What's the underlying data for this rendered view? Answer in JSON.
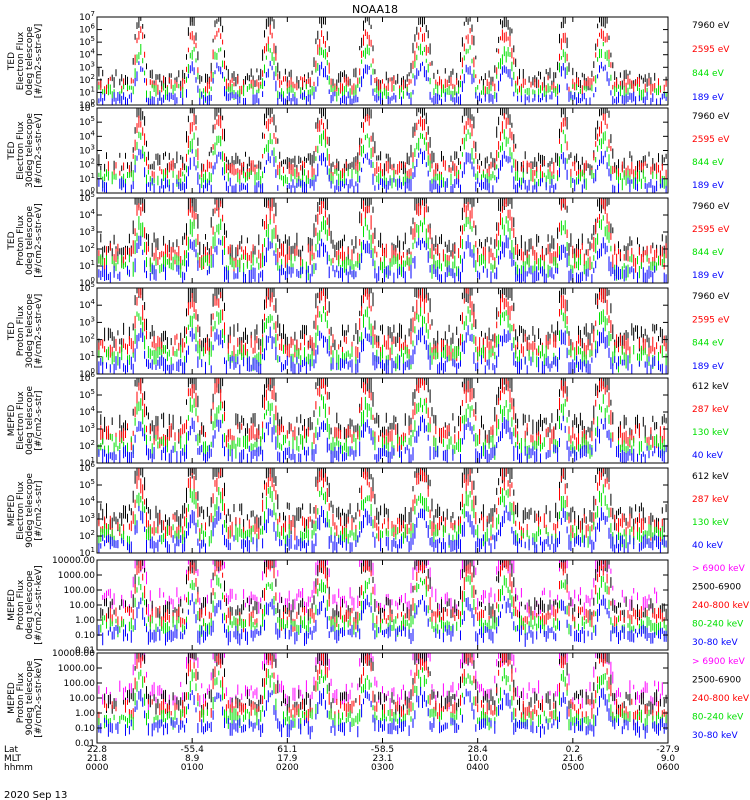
{
  "title": "NOAA18",
  "date": "2020 Sep 13",
  "colors": {
    "blue": "#0000ff",
    "red": "#ff0000",
    "green": "#00e000",
    "black": "#000000",
    "magenta": "#ff00ff"
  },
  "axis_rows": {
    "labels": [
      "Lat",
      "MLT",
      "hhmm"
    ]
  },
  "chart_data": [
    {
      "type": "line",
      "ylabel_lines": [
        "TED",
        "Electron Flux",
        "0deg telescope",
        "[#/cm2-s-str-eV]"
      ],
      "ylog": true,
      "ylim_exp": [
        0,
        7
      ],
      "ytick_labels": [
        "10^0",
        "10^1",
        "10^2",
        "10^3",
        "10^4",
        "10^5",
        "10^6",
        "10^7"
      ],
      "series": [
        {
          "name": "7960 eV",
          "color": "black"
        },
        {
          "name": "2595 eV",
          "color": "red"
        },
        {
          "name": "844 eV",
          "color": "green"
        },
        {
          "name": "189 eV",
          "color": "blue"
        }
      ]
    },
    {
      "type": "line",
      "ylabel_lines": [
        "TED",
        "Electron Flux",
        "30deg telescope",
        "[#/cm2-s-str-eV]"
      ],
      "ylog": true,
      "ylim_exp": [
        0,
        6
      ],
      "ytick_labels": [
        "10^0",
        "10^1",
        "10^2",
        "10^3",
        "10^4",
        "10^5",
        "10^6"
      ],
      "series": [
        {
          "name": "7960 eV",
          "color": "black"
        },
        {
          "name": "2595 eV",
          "color": "red"
        },
        {
          "name": "844 eV",
          "color": "green"
        },
        {
          "name": "189 eV",
          "color": "blue"
        }
      ]
    },
    {
      "type": "line",
      "ylabel_lines": [
        "TED",
        "Proton Flux",
        "0deg telescope",
        "[#/cm2-s-str-eV]"
      ],
      "ylog": true,
      "ylim_exp": [
        0,
        5
      ],
      "ytick_labels": [
        "10^0",
        "10^1",
        "10^2",
        "10^3",
        "10^4",
        "10^5"
      ],
      "series": [
        {
          "name": "7960 eV",
          "color": "black"
        },
        {
          "name": "2595 eV",
          "color": "red"
        },
        {
          "name": "844 eV",
          "color": "green"
        },
        {
          "name": "189 eV",
          "color": "blue"
        }
      ]
    },
    {
      "type": "line",
      "ylabel_lines": [
        "TED",
        "Proton Flux",
        "30deg telescope",
        "[#/cm2-s-str-eV]"
      ],
      "ylog": true,
      "ylim_exp": [
        0,
        5
      ],
      "ytick_labels": [
        "10^0",
        "10^1",
        "10^2",
        "10^3",
        "10^4",
        "10^5"
      ],
      "series": [
        {
          "name": "7960 eV",
          "color": "black"
        },
        {
          "name": "2595 eV",
          "color": "red"
        },
        {
          "name": "844 eV",
          "color": "green"
        },
        {
          "name": "189 eV",
          "color": "blue"
        }
      ]
    },
    {
      "type": "line",
      "ylabel_lines": [
        "MEPED",
        "Electron Flux",
        "0deg telescope",
        "[#/cm2-s-str]"
      ],
      "ylog": true,
      "ylim_exp": [
        1,
        6
      ],
      "ytick_labels": [
        "10^1",
        "10^2",
        "10^3",
        "10^4",
        "10^5",
        "10^6"
      ],
      "series": [
        {
          "name": "612 keV",
          "color": "black"
        },
        {
          "name": "287 keV",
          "color": "red"
        },
        {
          "name": "130 keV",
          "color": "green"
        },
        {
          "name": "40 keV",
          "color": "blue"
        }
      ]
    },
    {
      "type": "line",
      "ylabel_lines": [
        "MEPED",
        "Electron Flux",
        "90deg telescope",
        "[#/cm2-s-str]"
      ],
      "ylog": true,
      "ylim_exp": [
        1,
        6
      ],
      "ytick_labels": [
        "10^1",
        "10^2",
        "10^3",
        "10^4",
        "10^5",
        "10^6"
      ],
      "series": [
        {
          "name": "612 keV",
          "color": "black"
        },
        {
          "name": "287 keV",
          "color": "red"
        },
        {
          "name": "130 keV",
          "color": "green"
        },
        {
          "name": "40 keV",
          "color": "blue"
        }
      ]
    },
    {
      "type": "line",
      "ylabel_lines": [
        "MEPED",
        "Proton Flux",
        "0deg telescope",
        "[#/cm2-s-str-keV]"
      ],
      "ylog": true,
      "ylim_exp": [
        -2,
        4
      ],
      "ytick_labels": [
        "0.01",
        "0.10",
        "1.00",
        "10.00",
        "100.00",
        "1000.00",
        "10000.00"
      ],
      "series": [
        {
          "name": "> 6900 keV",
          "color": "magenta"
        },
        {
          "name": "2500-6900",
          "color": "black"
        },
        {
          "name": "240-800 keV",
          "color": "red"
        },
        {
          "name": "80-240 keV",
          "color": "green"
        },
        {
          "name": "30-80 keV",
          "color": "blue"
        }
      ]
    },
    {
      "type": "line",
      "ylabel_lines": [
        "MEPED",
        "Proton Flux",
        "90deg telescope",
        "[#/cm2-s-str-keV]"
      ],
      "ylog": true,
      "ylim_exp": [
        -2,
        4
      ],
      "ytick_labels": [
        "0.01",
        "0.10",
        "1.00",
        "10.00",
        "100.00",
        "1000.00",
        "10000.00"
      ],
      "series": [
        {
          "name": "> 6900 keV",
          "color": "magenta"
        },
        {
          "name": "2500-6900",
          "color": "black"
        },
        {
          "name": "240-800 keV",
          "color": "red"
        },
        {
          "name": "80-240 keV",
          "color": "green"
        },
        {
          "name": "30-80 keV",
          "color": "blue"
        }
      ]
    }
  ],
  "x_axis": {
    "range_minutes": [
      0,
      360
    ],
    "ticks": [
      {
        "t": 0,
        "lat": "22.8",
        "mlt": "21.8",
        "hhmm": "0000"
      },
      {
        "t": 60,
        "lat": "-55.4",
        "mlt": "8.9",
        "hhmm": "0100"
      },
      {
        "t": 120,
        "lat": "61.1",
        "mlt": "17.9",
        "hhmm": "0200"
      },
      {
        "t": 180,
        "lat": "-58.5",
        "mlt": "23.1",
        "hhmm": "0300"
      },
      {
        "t": 240,
        "lat": "28.4",
        "mlt": "10.0",
        "hhmm": "0400"
      },
      {
        "t": 300,
        "lat": "0.2",
        "mlt": "21.6",
        "hhmm": "0500"
      },
      {
        "t": 360,
        "lat": "-27.9",
        "mlt": "9.0",
        "hhmm": "0600"
      }
    ]
  }
}
